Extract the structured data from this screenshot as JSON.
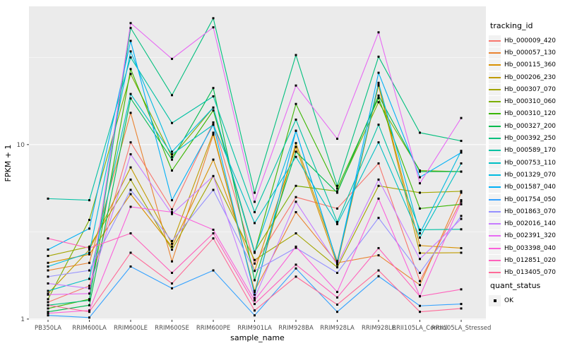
{
  "accent_colors": {
    "panel_background": "#EBEBEB",
    "gridline": "#FFFFFF",
    "tick_text": "#4D4D4D",
    "axis_text": "#000000",
    "point_color": "#000000",
    "legend_key_background": "#F2F2F2"
  },
  "axes": {
    "x_title": "sample_name",
    "y_title": "FPKM + 1",
    "y_tick_labels": [
      "1",
      "10"
    ],
    "y_tick_values": [
      1,
      10
    ],
    "y_minor_values": [
      3.1623,
      31.623
    ]
  },
  "legend": {
    "color_title": "tracking_id",
    "shape_title": "quant_status",
    "shape_items": [
      {
        "label": "OK",
        "shape": "black-square"
      }
    ]
  },
  "chart_data": {
    "type": "line",
    "title": "",
    "xlabel": "sample_name",
    "ylabel": "FPKM + 1",
    "y_scale": "log10",
    "ylim": [
      0.99,
      62
    ],
    "grid": "on",
    "legend_position": "right",
    "point_shape": "filled-square",
    "categories": [
      "PB350LA",
      "RRIM600LA",
      "RRIM600LE",
      "RRIM600SE",
      "RRIM600PE",
      "RRIM901LA",
      "RRIM928BA",
      "RRIM928LA",
      "RRIM928LE",
      "RRII105LA_Control",
      "RRII105LA_Stressed"
    ],
    "series": [
      {
        "name": "Hb_000009_420",
        "color": "#F8766D",
        "values": [
          1.25,
          1.55,
          10.3,
          4.25,
          13.4,
          2.08,
          5.0,
          4.3,
          7.8,
          1.65,
          4.8
        ]
      },
      {
        "name": "Hb_000057_130",
        "color": "#EA8331",
        "values": [
          1.9,
          2.1,
          15.2,
          2.14,
          11.4,
          1.45,
          4.1,
          2.1,
          2.32,
          1.57,
          5.3
        ]
      },
      {
        "name": "Hb_000115_360",
        "color": "#D89000",
        "values": [
          2.1,
          2.35,
          5.2,
          2.6,
          8.2,
          1.89,
          9.7,
          2.05,
          22.0,
          2.64,
          2.55
        ]
      },
      {
        "name": "Hb_000206_230",
        "color": "#C09B00",
        "values": [
          1.4,
          2.5,
          7.4,
          2.7,
          11.7,
          1.43,
          10.2,
          2.15,
          21.8,
          2.39,
          2.4
        ]
      },
      {
        "name": "Hb_000307_070",
        "color": "#A3A500",
        "values": [
          2.3,
          2.6,
          6.3,
          2.5,
          6.6,
          2.18,
          3.1,
          1.98,
          5.8,
          5.3,
          5.4
        ]
      },
      {
        "name": "Hb_000310_060",
        "color": "#7CAE00",
        "values": [
          1.3,
          3.7,
          25.4,
          8.5,
          16.3,
          2.43,
          5.8,
          5.4,
          17.5,
          7.1,
          7.0
        ]
      },
      {
        "name": "Hb_000310_120",
        "color": "#39B600",
        "values": [
          1.15,
          1.3,
          27.1,
          7.1,
          15.7,
          2.4,
          17.1,
          5.6,
          18.5,
          4.3,
          4.55
        ]
      },
      {
        "name": "Hb_000327_200",
        "color": "#00BB4E",
        "values": [
          1.1,
          1.2,
          18.4,
          8.2,
          21.1,
          1.67,
          9.1,
          5.3,
          19.1,
          7.0,
          7.0
        ]
      },
      {
        "name": "Hb_000392_250",
        "color": "#00BF7D",
        "values": [
          1.2,
          1.28,
          46.6,
          19.2,
          53.0,
          5.3,
          32.6,
          5.8,
          31.9,
          11.7,
          10.5
        ]
      },
      {
        "name": "Hb_000589_170",
        "color": "#00C1A3",
        "values": [
          4.9,
          4.8,
          31.6,
          13.3,
          18.9,
          4.1,
          13.9,
          3.6,
          13.0,
          3.25,
          3.27
        ]
      },
      {
        "name": "Hb_000753_110",
        "color": "#00BFC4",
        "values": [
          1.45,
          1.7,
          19.5,
          8.8,
          13.0,
          3.55,
          8.5,
          3.5,
          10.3,
          2.93,
          7.8
        ]
      },
      {
        "name": "Hb_001329_070",
        "color": "#00BAE0",
        "values": [
          2.0,
          2.4,
          34.2,
          9.1,
          16.3,
          2.4,
          12.0,
          2.1,
          22.6,
          3.1,
          9.2
        ]
      },
      {
        "name": "Hb_001587_040",
        "color": "#00B0F6",
        "values": [
          2.5,
          3.3,
          39.3,
          4.8,
          13.0,
          1.38,
          12.0,
          2.1,
          25.8,
          6.5,
          9.0
        ]
      },
      {
        "name": "Hb_001754_050",
        "color": "#35A2FF",
        "values": [
          1.05,
          1.02,
          2.0,
          1.5,
          1.9,
          1.05,
          1.95,
          1.1,
          1.76,
          1.19,
          1.22
        ]
      },
      {
        "name": "Hb_001863_070",
        "color": "#9590FF",
        "values": [
          1.75,
          1.9,
          5.5,
          2.8,
          5.5,
          1.89,
          2.56,
          1.84,
          3.8,
          1.84,
          3.9
        ]
      },
      {
        "name": "Hb_002016_140",
        "color": "#C77CFF",
        "values": [
          1.6,
          1.5,
          8.8,
          4.0,
          6.6,
          1.32,
          4.7,
          2.05,
          6.3,
          2.21,
          3.75
        ]
      },
      {
        "name": "Hb_002391_320",
        "color": "#E76BF3",
        "values": [
          1.38,
          1.4,
          49.7,
          31.0,
          47.0,
          4.7,
          21.8,
          10.8,
          44.0,
          6.0,
          14.2
        ]
      },
      {
        "name": "Hb_003398_040",
        "color": "#FA62DB",
        "values": [
          1.08,
          1.12,
          4.4,
          4.1,
          3.25,
          1.28,
          2.6,
          1.43,
          4.9,
          1.35,
          4.7
        ]
      },
      {
        "name": "Hb_012851_020",
        "color": "#FF62BC",
        "values": [
          2.9,
          2.55,
          3.1,
          1.84,
          3.1,
          1.22,
          2.05,
          1.33,
          2.55,
          1.35,
          1.48
        ]
      },
      {
        "name": "Hb_013405_070",
        "color": "#FF6A98",
        "values": [
          1.2,
          1.1,
          2.4,
          1.6,
          2.9,
          1.12,
          1.75,
          1.21,
          1.9,
          1.1,
          1.15
        ]
      }
    ]
  }
}
